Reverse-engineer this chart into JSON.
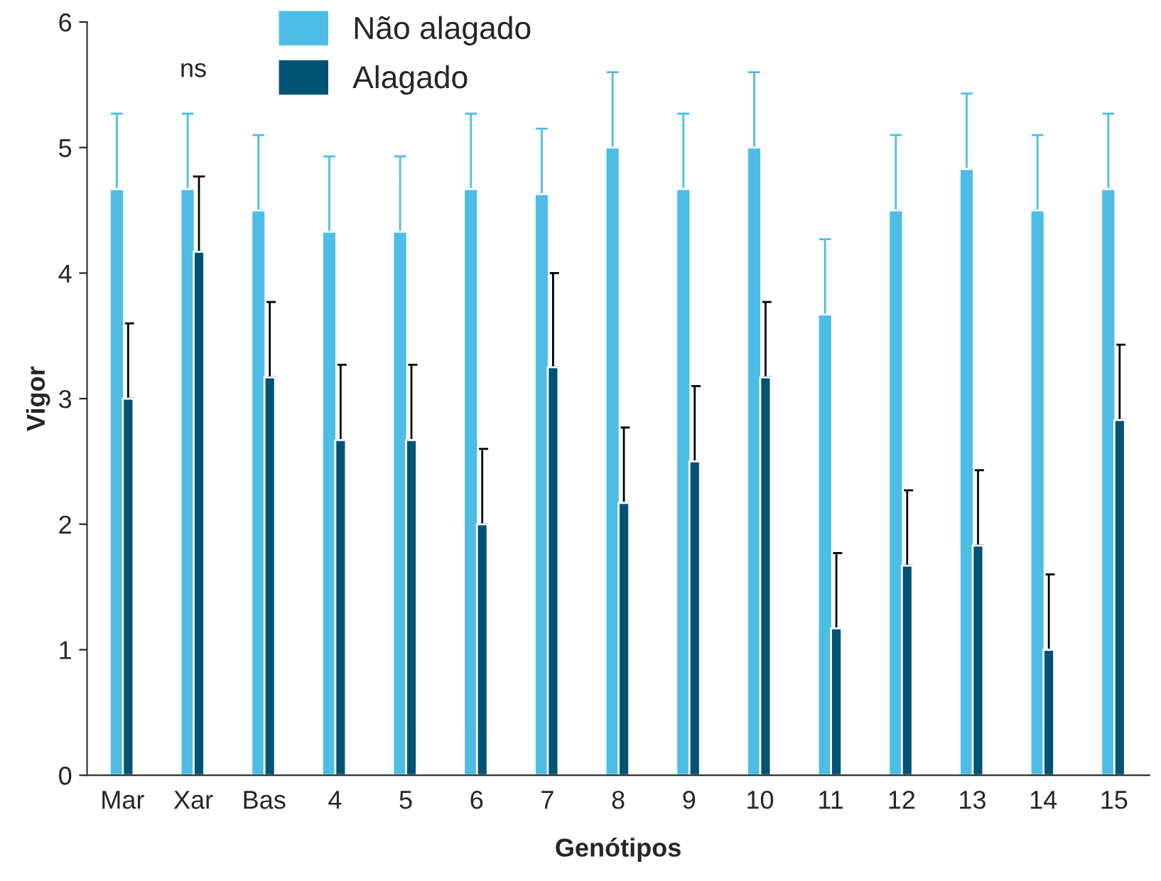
{
  "chart_data": {
    "type": "bar",
    "xlabel": "Genótipos",
    "ylabel": "Vigor",
    "categories": [
      "Mar",
      "Xar",
      "Bas",
      "4",
      "5",
      "6",
      "7",
      "8",
      "9",
      "10",
      "11",
      "12",
      "13",
      "14",
      "15"
    ],
    "series": [
      {
        "name": "Não alagado",
        "color": "#4dbde6",
        "values": [
          4.67,
          4.67,
          4.5,
          4.33,
          4.33,
          4.67,
          4.63,
          5.0,
          4.67,
          5.0,
          3.67,
          4.5,
          4.83,
          4.5,
          4.67
        ],
        "errors": [
          [
            4.67,
            5.27
          ],
          [
            4.67,
            5.27
          ],
          [
            4.5,
            5.1
          ],
          [
            4.33,
            4.93
          ],
          [
            4.33,
            4.93
          ],
          [
            4.67,
            5.27
          ],
          [
            4.63,
            5.15
          ],
          [
            5.0,
            5.6
          ],
          [
            4.67,
            5.27
          ],
          [
            5.0,
            5.6
          ],
          [
            3.67,
            4.27
          ],
          [
            4.5,
            5.1
          ],
          [
            4.83,
            5.43
          ],
          [
            4.5,
            5.1
          ],
          [
            4.67,
            5.27
          ]
        ]
      },
      {
        "name": "Alagado",
        "color": "#005373",
        "values": [
          3.0,
          4.17,
          3.17,
          2.67,
          2.67,
          2.0,
          3.25,
          2.17,
          2.5,
          3.17,
          1.17,
          1.67,
          1.83,
          1.0,
          2.83
        ],
        "errors": [
          [
            3.0,
            3.6
          ],
          [
            4.17,
            4.77
          ],
          [
            3.17,
            3.77
          ],
          [
            2.67,
            3.27
          ],
          [
            2.67,
            3.27
          ],
          [
            2.0,
            2.6
          ],
          [
            3.25,
            4.0
          ],
          [
            2.17,
            2.77
          ],
          [
            2.5,
            3.1
          ],
          [
            3.17,
            3.77
          ],
          [
            1.17,
            1.77
          ],
          [
            1.67,
            2.27
          ],
          [
            1.83,
            2.43
          ],
          [
            1.0,
            1.6
          ],
          [
            2.83,
            3.43
          ]
        ]
      }
    ],
    "ylim": [
      0,
      6
    ],
    "yticks": [
      0,
      1,
      2,
      3,
      4,
      5,
      6
    ],
    "grid": false,
    "legend": "top",
    "annotations": [
      "ns"
    ]
  }
}
